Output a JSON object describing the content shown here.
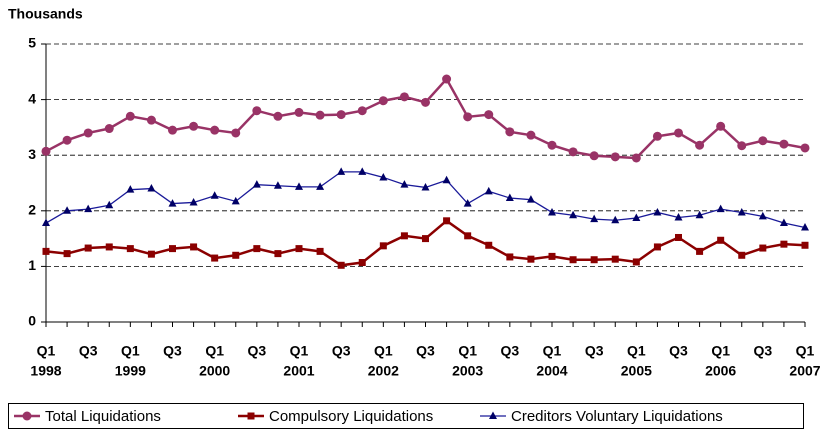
{
  "chart_data": {
    "type": "line",
    "y_axis_label": "Thousands",
    "categories": [
      "Q1",
      null,
      "Q3",
      null,
      "Q1",
      null,
      "Q3",
      null,
      "Q1",
      null,
      "Q3",
      null,
      "Q1",
      null,
      "Q3",
      null,
      "Q1",
      null,
      "Q3",
      null,
      "Q1",
      null,
      "Q3",
      null,
      "Q1",
      null,
      "Q3",
      null,
      "Q1",
      null,
      "Q3",
      null,
      "Q1",
      null,
      "Q3",
      null,
      "Q1"
    ],
    "category_years": [
      "1998",
      null,
      null,
      null,
      "1999",
      null,
      null,
      null,
      "2000",
      null,
      null,
      null,
      "2001",
      null,
      null,
      null,
      "2002",
      null,
      null,
      null,
      "2003",
      null,
      null,
      null,
      "2004",
      null,
      null,
      null,
      "2005",
      null,
      null,
      null,
      "2006",
      null,
      null,
      null,
      "2007"
    ],
    "ylim": [
      0,
      5
    ],
    "yticks": [
      0,
      1,
      2,
      3,
      4,
      5
    ],
    "grid": true,
    "series": [
      {
        "name": "Total Liquidations",
        "color": "#993366",
        "marker": "circle",
        "values": [
          3.07,
          3.27,
          3.4,
          3.48,
          3.7,
          3.63,
          3.45,
          3.52,
          3.45,
          3.4,
          3.8,
          3.7,
          3.77,
          3.72,
          3.73,
          3.8,
          3.98,
          4.05,
          3.95,
          4.37,
          3.69,
          3.73,
          3.42,
          3.36,
          3.18,
          3.06,
          2.99,
          2.97,
          2.95,
          3.34,
          3.4,
          3.18,
          3.52,
          3.17,
          3.26,
          3.2,
          3.13
        ]
      },
      {
        "name": "Compulsory Liquidations",
        "color": "#8b0000",
        "marker": "square",
        "values": [
          1.27,
          1.23,
          1.33,
          1.35,
          1.32,
          1.22,
          1.32,
          1.35,
          1.15,
          1.2,
          1.32,
          1.23,
          1.32,
          1.27,
          1.02,
          1.07,
          1.37,
          1.55,
          1.5,
          1.82,
          1.55,
          1.38,
          1.17,
          1.13,
          1.18,
          1.12,
          1.12,
          1.13,
          1.08,
          1.35,
          1.52,
          1.27,
          1.47,
          1.2,
          1.33,
          1.4,
          1.38
        ]
      },
      {
        "name": "Creditors Voluntary Liquidations",
        "color": "#1a1a99",
        "marker": "triangle",
        "values": [
          1.78,
          2.0,
          2.03,
          2.1,
          2.38,
          2.4,
          2.13,
          2.15,
          2.27,
          2.17,
          2.47,
          2.45,
          2.43,
          2.43,
          2.7,
          2.7,
          2.6,
          2.47,
          2.42,
          2.55,
          2.13,
          2.35,
          2.23,
          2.2,
          1.97,
          1.92,
          1.85,
          1.83,
          1.87,
          1.97,
          1.88,
          1.92,
          2.03,
          1.97,
          1.9,
          1.78,
          1.7
        ]
      }
    ],
    "legend": "bottom"
  }
}
